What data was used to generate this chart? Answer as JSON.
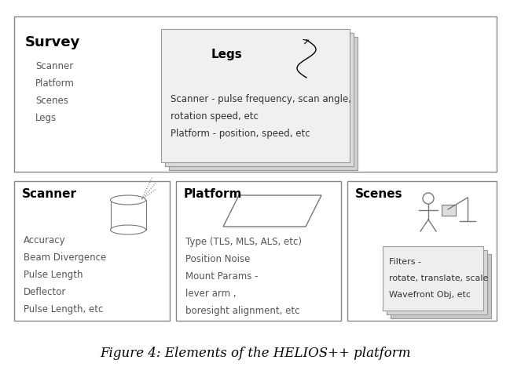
{
  "title": "Figure 4: Elements of the HELIOS++ platform",
  "title_fontsize": 12,
  "bg_color": "#ffffff",
  "box_edge_color": "#888888",
  "survey_title": "Survey",
  "survey_items": [
    "Scanner",
    "Platform",
    "Scenes",
    "Legs"
  ],
  "legs_title": "Legs",
  "legs_items": [
    "Scanner - pulse frequency, scan angle,",
    "rotation speed, etc",
    "Platform - position, speed, etc"
  ],
  "scanner_title": "Scanner",
  "scanner_items": [
    "Accuracy",
    "Beam Divergence",
    "Pulse Length",
    "Deflector",
    "Pulse Length, etc"
  ],
  "platform_title": "Platform",
  "platform_items": [
    "Type (TLS, MLS, ALS, etc)",
    "Position Noise",
    "Mount Params -",
    "lever arm ,",
    "boresight alignment, etc"
  ],
  "scenes_title": "Scenes",
  "scenes_items": [
    "Filters -",
    "rotate, translate, scale",
    "Wavefront Obj, etc"
  ],
  "label_fontsize": 8.5,
  "header_fontsize": 11,
  "survey_fontsize": 13
}
